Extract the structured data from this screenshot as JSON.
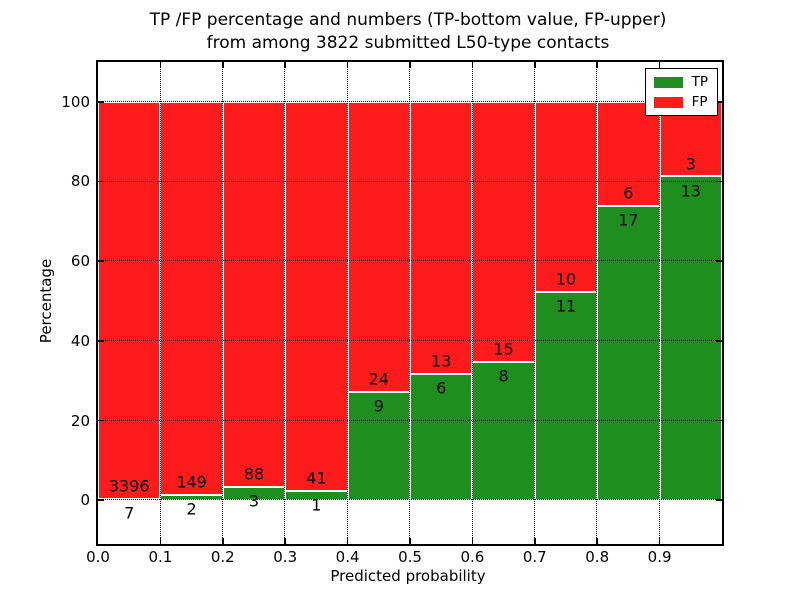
{
  "title": {
    "line1": "TP /FP percentage and numbers (TP-bottom value, FP-upper)",
    "line2": "from among 3822 submitted L50-type contacts"
  },
  "axes": {
    "x_label": "Predicted probability",
    "y_label": "Percentage",
    "x_tick_labels": [
      "0.0",
      "0.1",
      "0.2",
      "0.3",
      "0.4",
      "0.5",
      "0.6",
      "0.7",
      "0.8",
      "0.9"
    ],
    "y_tick_labels": [
      "0",
      "20",
      "40",
      "60",
      "80",
      "100"
    ],
    "y_tick_values": [
      0,
      20,
      40,
      60,
      80,
      100
    ]
  },
  "legend": {
    "items": [
      {
        "label": "TP",
        "color_key": "tp"
      },
      {
        "label": "FP",
        "color_key": "fp"
      }
    ]
  },
  "colors": {
    "tp": "#1e8e1e",
    "fp": "#fd1b1b",
    "grid": "#000000",
    "background": "#ffffff"
  },
  "chart_data": {
    "type": "bar",
    "stacked": true,
    "normalized": "each bar totals 100%",
    "title": "TP /FP percentage and numbers (TP-bottom value, FP-upper) from among 3822 submitted L50-type contacts",
    "xlabel": "Predicted probability",
    "ylabel": "Percentage",
    "xlim": [
      0.0,
      1.0
    ],
    "ylim": [
      -11,
      110
    ],
    "grid": true,
    "legend_position": "upper right",
    "total_contacts": 3822,
    "bins": [
      [
        0.0,
        0.1
      ],
      [
        0.1,
        0.2
      ],
      [
        0.2,
        0.3
      ],
      [
        0.3,
        0.4
      ],
      [
        0.4,
        0.5
      ],
      [
        0.5,
        0.6
      ],
      [
        0.6,
        0.7
      ],
      [
        0.7,
        0.8
      ],
      [
        0.8,
        0.9
      ],
      [
        0.9,
        1.0
      ]
    ],
    "series": [
      {
        "name": "TP",
        "counts": [
          7,
          2,
          3,
          1,
          9,
          6,
          8,
          11,
          17,
          13
        ],
        "position": "bottom"
      },
      {
        "name": "FP",
        "counts": [
          3396,
          149,
          88,
          41,
          24,
          13,
          15,
          10,
          6,
          3
        ],
        "position": "top"
      }
    ],
    "tp_percent_of_bin": [
      0.21,
      1.32,
      3.3,
      2.38,
      27.27,
      31.58,
      34.78,
      52.38,
      73.91,
      81.25
    ]
  }
}
